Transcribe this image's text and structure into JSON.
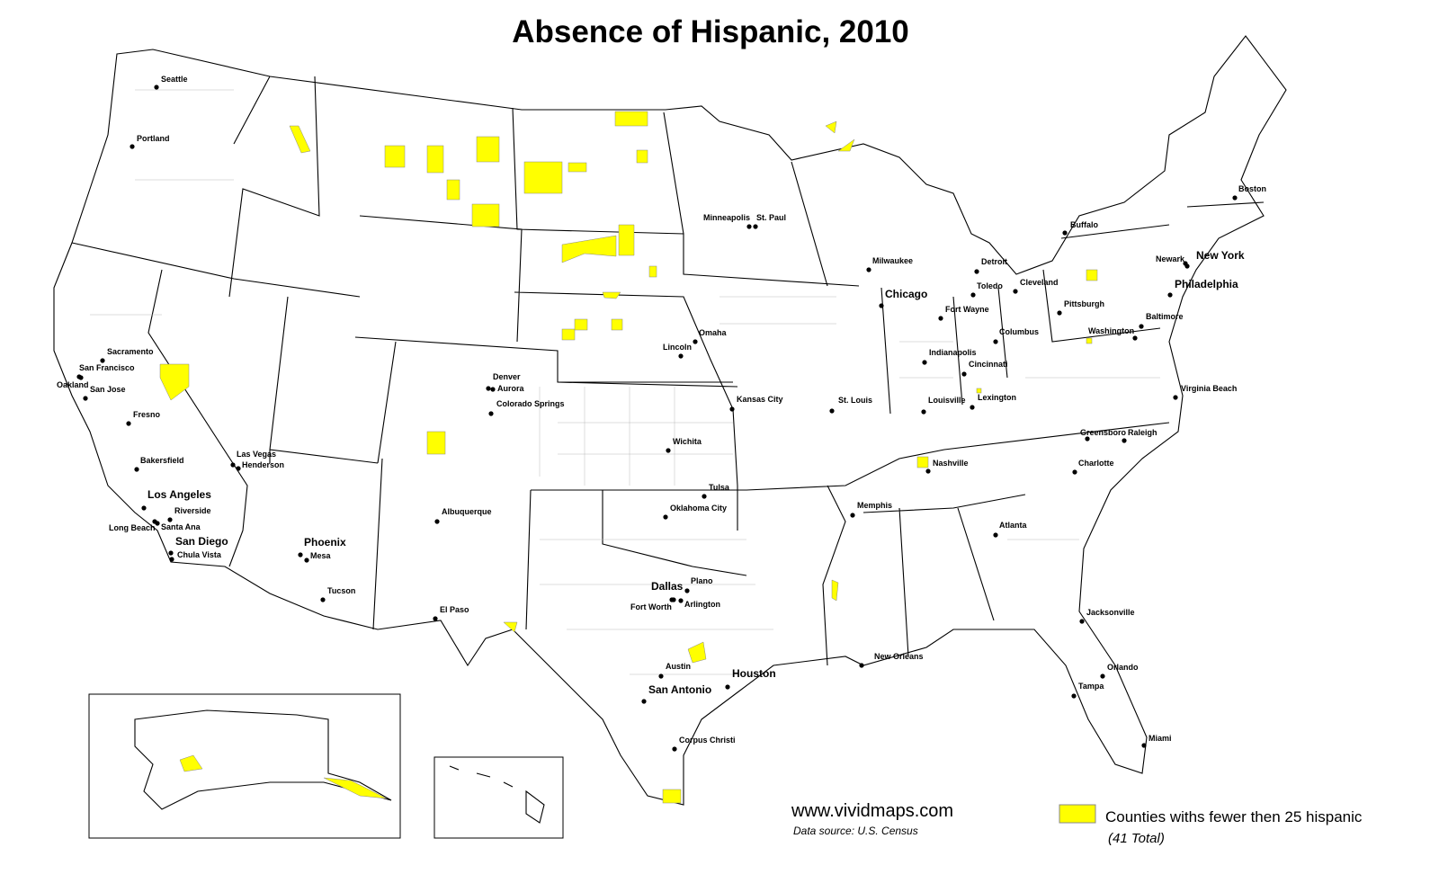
{
  "title": "Absence of Hispanic, 2010",
  "cities": [
    "Seattle",
    "Portland",
    "Sacramento",
    "San Francisco",
    "Oakland",
    "San Jose",
    "Fresno",
    "Bakersfield",
    "Las Vegas",
    "Henderson",
    "Los Angeles",
    "Riverside",
    "Santa Ana",
    "Long Beach",
    "San Diego",
    "Chula Vista",
    "Phoenix",
    "Mesa",
    "Tucson",
    "Albuquerque",
    "El Paso",
    "Denver",
    "Aurora",
    "Colorado Springs",
    "Minneapolis",
    "St. Paul",
    "Milwaukee",
    "Chicago",
    "Detroit",
    "Toledo",
    "Cleveland",
    "Fort Wayne",
    "Columbus",
    "Pittsburgh",
    "Indianapolis",
    "Cincinnati",
    "Louisville",
    "Lexington",
    "Omaha",
    "Lincoln",
    "Kansas City",
    "St. Louis",
    "Wichita",
    "Tulsa",
    "Oklahoma City",
    "Memphis",
    "Nashville",
    "Dallas",
    "Plano",
    "Fort Worth",
    "Arlington",
    "Austin",
    "San Antonio",
    "Houston",
    "Corpus Christi",
    "New Orleans",
    "Atlanta",
    "Charlotte",
    "Greensboro",
    "Raleigh",
    "Jacksonville",
    "Orlando",
    "Tampa",
    "Miami",
    "Buffalo",
    "Boston",
    "New York",
    "Newark",
    "Philadelphia",
    "Baltimore",
    "Washington",
    "Virginia Beach"
  ],
  "website": "www.vividmaps.com",
  "source": "Data source: U.S. Census",
  "legend": {
    "label": "Counties withs fewer then 25 hispanic",
    "note": "(41 Total)"
  }
}
